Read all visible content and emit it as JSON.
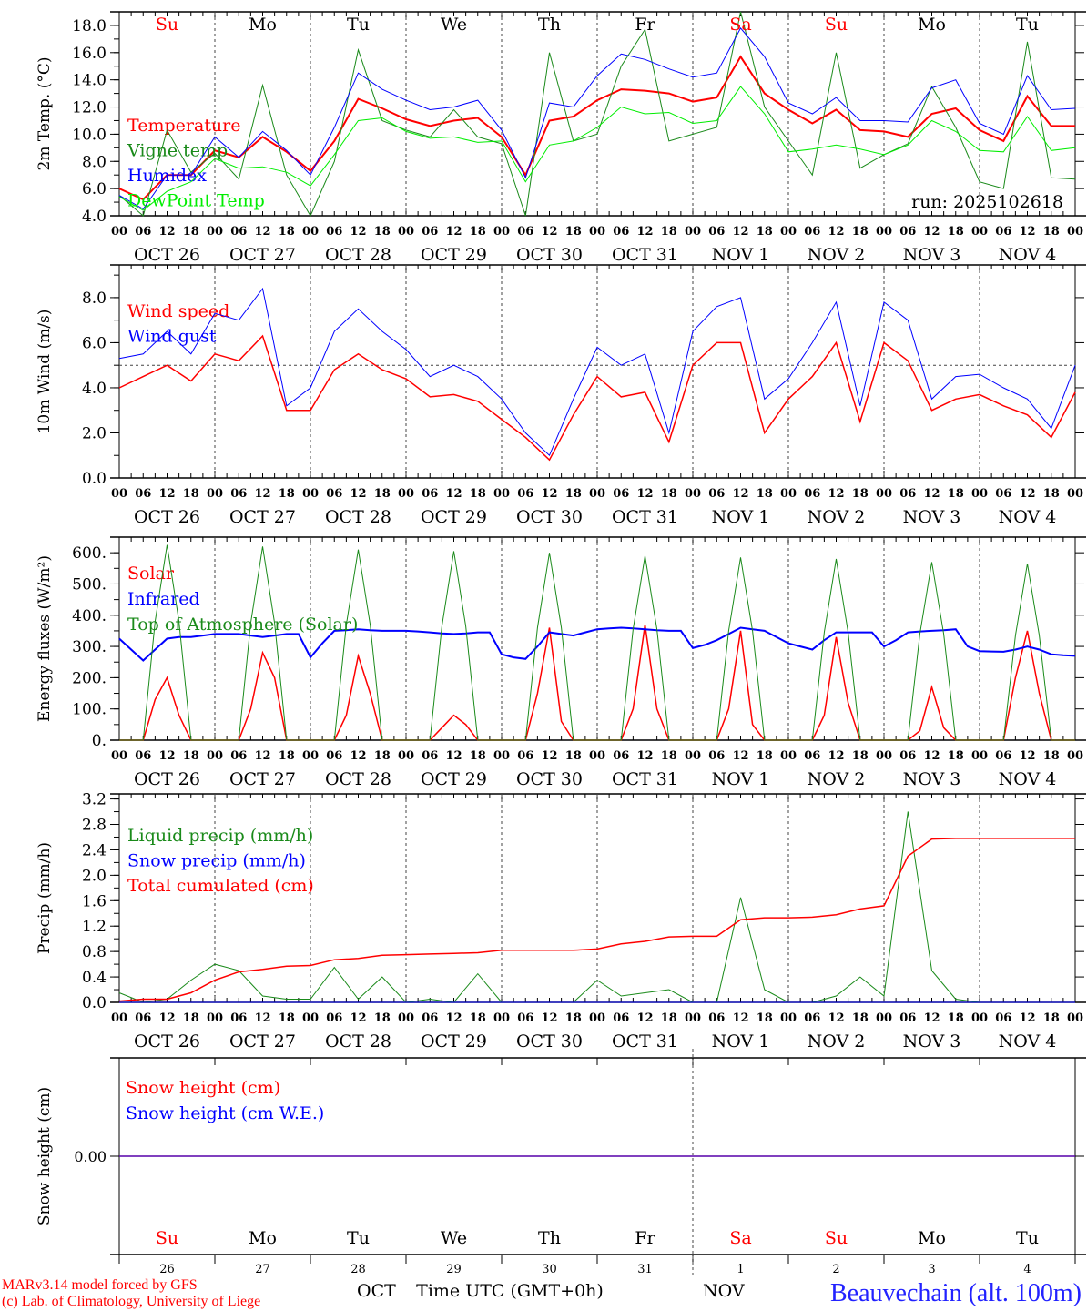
{
  "run_label": "run: 2025102618",
  "footer": {
    "model": "MARv3.14 model forced by GFS",
    "copyright": "(c) Lab. of Climatology, University of Liege",
    "time_axis": "Time UTC (GMT+0h)",
    "month_left": "OCT",
    "month_right": "NOV",
    "station": "Beauvechain (alt. 100m)"
  },
  "days": {
    "names": [
      "Su",
      "Mo",
      "Tu",
      "We",
      "Th",
      "Fr",
      "Sa",
      "Su",
      "Mo",
      "Tu"
    ],
    "weekend_color": "#ff0000",
    "weekday_color": "#000000",
    "weekend": [
      true,
      false,
      false,
      false,
      false,
      false,
      true,
      true,
      false,
      false
    ],
    "dates": [
      "OCT  26",
      "OCT  27",
      "OCT  28",
      "OCT  29",
      "OCT  30",
      "OCT  31",
      "NOV   1",
      "NOV   2",
      "NOV   3",
      "NOV   4"
    ],
    "day_numbers": [
      "26",
      "27",
      "28",
      "29",
      "30",
      "31",
      "1",
      "2",
      "3",
      "4"
    ],
    "hour_labels": [
      "00",
      "06",
      "12",
      "18"
    ]
  },
  "chart_data": [
    {
      "type": "line",
      "ylabel": "2m Temp. (°C)",
      "ylim": [
        4.0,
        19.0
      ],
      "yticks": [
        "4.0",
        "6.0",
        "8.0",
        "10.0",
        "12.0",
        "14.0",
        "16.0",
        "18.0"
      ],
      "x_step_hours": 6,
      "series": [
        {
          "name": "Temperature",
          "color": "#ff0000",
          "width": 2,
          "values": [
            6.0,
            5.2,
            7.0,
            7.0,
            8.8,
            8.3,
            9.8,
            8.7,
            7.3,
            9.5,
            12.6,
            11.9,
            11.1,
            10.6,
            11.0,
            11.2,
            9.8,
            7.0,
            11.0,
            11.3,
            12.5,
            13.3,
            13.2,
            13.0,
            12.4,
            12.7,
            15.7,
            13.0,
            11.8,
            10.8,
            11.8,
            10.3,
            10.2,
            9.8,
            11.5,
            11.9,
            10.3,
            9.5,
            12.8,
            10.6,
            10.6
          ]
        },
        {
          "name": "Vigne temp",
          "color": "#1a8a1a",
          "width": 1,
          "values": [
            5.5,
            3.5,
            10.3,
            7.2,
            8.6,
            6.7,
            13.6,
            7.0,
            3.8,
            8.0,
            16.2,
            11.0,
            10.3,
            9.8,
            11.8,
            9.8,
            9.3,
            3.0,
            16.0,
            9.5,
            10.0,
            15.0,
            17.7,
            9.5,
            10.0,
            10.5,
            19.0,
            12.0,
            9.5,
            7.0,
            16.0,
            7.5,
            8.5,
            9.3,
            13.5,
            10.5,
            6.5,
            6.0,
            16.8,
            6.8,
            6.7
          ]
        },
        {
          "name": "Humidex",
          "color": "#0000ff",
          "width": 1,
          "values": [
            5.5,
            4.5,
            7.0,
            7.0,
            9.8,
            8.3,
            10.2,
            8.8,
            7.0,
            10.5,
            14.5,
            13.3,
            12.5,
            11.8,
            12.0,
            12.5,
            10.3,
            6.8,
            12.3,
            12.0,
            14.3,
            15.9,
            15.5,
            14.8,
            14.2,
            14.5,
            17.8,
            15.7,
            12.3,
            11.5,
            12.7,
            11.0,
            11.0,
            10.9,
            13.4,
            14.0,
            10.8,
            10.0,
            14.3,
            11.8,
            11.9
          ]
        },
        {
          "name": "DewPoint Temp",
          "color": "#00ee00",
          "width": 1,
          "values": [
            5.4,
            4.4,
            5.8,
            6.5,
            8.2,
            7.5,
            7.6,
            7.2,
            6.2,
            8.5,
            11.0,
            11.2,
            10.2,
            9.7,
            9.8,
            9.4,
            9.5,
            6.5,
            9.2,
            9.5,
            10.5,
            12.0,
            11.5,
            11.6,
            10.8,
            11.0,
            13.5,
            11.5,
            8.7,
            8.9,
            9.2,
            8.9,
            8.5,
            9.2,
            11.0,
            10.2,
            8.8,
            8.7,
            11.3,
            8.8,
            9.0
          ]
        }
      ]
    },
    {
      "type": "line",
      "ylabel": "10m Wind (m/s)",
      "ylim": [
        0,
        9.45
      ],
      "yticks": [
        "0.0",
        "2.0",
        "4.0",
        "6.0",
        "8.0"
      ],
      "reference_line": 5.0,
      "x_step_hours": 6,
      "series": [
        {
          "name": "Wind speed",
          "color": "#ff0000",
          "width": 1.5,
          "values": [
            4.0,
            4.5,
            5.0,
            4.3,
            5.5,
            5.2,
            6.3,
            3.0,
            3.0,
            4.8,
            5.5,
            4.8,
            4.4,
            3.6,
            3.7,
            3.4,
            2.6,
            1.8,
            0.8,
            2.8,
            4.5,
            3.6,
            3.8,
            1.6,
            5.0,
            6.0,
            6.0,
            2.0,
            3.5,
            4.5,
            6.0,
            2.5,
            6.0,
            5.2,
            3.0,
            3.5,
            3.7,
            3.2,
            2.8,
            1.8,
            3.8
          ]
        },
        {
          "name": "Wind gust",
          "color": "#0000ff",
          "width": 1,
          "values": [
            5.3,
            5.5,
            6.5,
            5.5,
            7.3,
            7.0,
            8.4,
            3.2,
            4.0,
            6.5,
            7.5,
            6.5,
            5.7,
            4.5,
            5.0,
            4.5,
            3.5,
            2.0,
            1.0,
            3.5,
            5.8,
            5.0,
            5.5,
            2.0,
            6.5,
            7.6,
            8.0,
            3.5,
            4.4,
            6.0,
            7.8,
            3.2,
            7.8,
            7.0,
            3.5,
            4.5,
            4.6,
            4.0,
            3.5,
            2.2,
            5.0
          ]
        }
      ]
    },
    {
      "type": "line",
      "ylabel": "Energy fluxes (W/m²)",
      "ylim": [
        0,
        650
      ],
      "yticks": [
        "0.",
        "100.",
        "200.",
        "300.",
        "400.",
        "500.",
        "600."
      ],
      "x_step_hours": 3,
      "series": [
        {
          "name": "Solar",
          "color": "#ff0000",
          "width": 1.5,
          "values": [
            0,
            0,
            0,
            130,
            200,
            80,
            0,
            0,
            0,
            0,
            0,
            100,
            280,
            200,
            0,
            0,
            0,
            0,
            0,
            80,
            270,
            150,
            0,
            0,
            0,
            0,
            0,
            40,
            80,
            50,
            0,
            0,
            0,
            0,
            0,
            150,
            360,
            60,
            0,
            0,
            0,
            0,
            0,
            100,
            370,
            100,
            0,
            0,
            0,
            0,
            0,
            100,
            350,
            50,
            0,
            0,
            0,
            0,
            0,
            80,
            330,
            120,
            0,
            0,
            0,
            0,
            0,
            30,
            170,
            40,
            0,
            0,
            0,
            0,
            0,
            200,
            350,
            150,
            0,
            0,
            0
          ]
        },
        {
          "name": "Infrared",
          "color": "#0000ff",
          "width": 2,
          "values": [
            325,
            290,
            255,
            290,
            325,
            330,
            330,
            335,
            340,
            340,
            340,
            335,
            330,
            335,
            340,
            340,
            265,
            310,
            350,
            352,
            355,
            352,
            350,
            350,
            350,
            348,
            345,
            342,
            340,
            342,
            345,
            345,
            275,
            265,
            260,
            300,
            345,
            340,
            335,
            345,
            355,
            358,
            360,
            358,
            355,
            352,
            350,
            350,
            295,
            305,
            320,
            340,
            360,
            355,
            350,
            330,
            310,
            300,
            290,
            320,
            345,
            345,
            345,
            345,
            300,
            320,
            345,
            348,
            350,
            352,
            355,
            300,
            285,
            284,
            283,
            290,
            300,
            290,
            275,
            272,
            270
          ]
        },
        {
          "name": "Top of Atmosphere (Solar)",
          "color": "#1a8a1a",
          "width": 1,
          "values": [
            0,
            0,
            0,
            380,
            625,
            380,
            0,
            0,
            0,
            0,
            0,
            375,
            620,
            375,
            0,
            0,
            0,
            0,
            0,
            370,
            610,
            370,
            0,
            0,
            0,
            0,
            0,
            365,
            605,
            365,
            0,
            0,
            0,
            0,
            0,
            360,
            600,
            360,
            0,
            0,
            0,
            0,
            0,
            355,
            590,
            355,
            0,
            0,
            0,
            0,
            0,
            350,
            585,
            350,
            0,
            0,
            0,
            0,
            0,
            345,
            580,
            345,
            0,
            0,
            0,
            0,
            0,
            340,
            570,
            340,
            0,
            0,
            0,
            0,
            0,
            335,
            565,
            335,
            0,
            0,
            0
          ]
        }
      ]
    },
    {
      "type": "line",
      "ylabel": "Precip (mm/h)",
      "ylim": [
        0,
        3.28
      ],
      "yticks": [
        "0.0",
        "0.4",
        "0.8",
        "1.2",
        "1.6",
        "2.0",
        "2.4",
        "2.8",
        "3.2"
      ],
      "x_step_hours": 6,
      "series": [
        {
          "name": "Liquid precip (mm/h)",
          "color": "#1a8a1a",
          "width": 1,
          "values": [
            0.15,
            0,
            0.05,
            0.35,
            0.6,
            0.5,
            0.1,
            0.05,
            0.05,
            0.55,
            0.05,
            0.4,
            0,
            0.05,
            0,
            0.45,
            0,
            0,
            0,
            0,
            0.35,
            0.1,
            0.15,
            0.2,
            0,
            0,
            1.65,
            0.2,
            0,
            0,
            0.1,
            0.4,
            0.1,
            3.0,
            0.5,
            0.05,
            0,
            0,
            0,
            0,
            0
          ]
        },
        {
          "name": "Snow precip (mm/h)",
          "color": "#0000ff",
          "width": 1,
          "values": [
            0,
            0,
            0,
            0,
            0,
            0,
            0,
            0,
            0,
            0,
            0,
            0,
            0,
            0,
            0,
            0,
            0,
            0,
            0,
            0,
            0,
            0,
            0,
            0,
            0,
            0,
            0,
            0,
            0,
            0,
            0,
            0,
            0,
            0,
            0,
            0,
            0,
            0,
            0,
            0,
            0
          ]
        },
        {
          "name": "Total cumulated (cm)",
          "color": "#ff0000",
          "width": 1.5,
          "values": [
            0.02,
            0.05,
            0.05,
            0.15,
            0.35,
            0.48,
            0.52,
            0.57,
            0.58,
            0.67,
            0.69,
            0.74,
            0.75,
            0.76,
            0.77,
            0.78,
            0.82,
            0.82,
            0.82,
            0.82,
            0.84,
            0.92,
            0.96,
            1.03,
            1.04,
            1.04,
            1.3,
            1.33,
            1.33,
            1.34,
            1.38,
            1.47,
            1.52,
            2.3,
            2.57,
            2.58,
            2.58,
            2.58,
            2.58,
            2.58,
            2.58
          ]
        }
      ]
    },
    {
      "type": "line",
      "ylabel": "Snow height (cm)",
      "ylim": [
        -1,
        1
      ],
      "yticks": [
        "0.00"
      ],
      "x_step_hours": 24,
      "series": [
        {
          "name": "Snow height (cm)",
          "color": "#ff0000",
          "width": 1.5,
          "values": [
            0,
            0,
            0,
            0,
            0,
            0,
            0,
            0,
            0,
            0,
            0
          ]
        },
        {
          "name": "Snow height (cm W.E.)",
          "color": "#0000ff",
          "width": 1,
          "values": [
            0,
            0,
            0,
            0,
            0,
            0,
            0,
            0,
            0,
            0,
            0
          ]
        }
      ]
    }
  ]
}
